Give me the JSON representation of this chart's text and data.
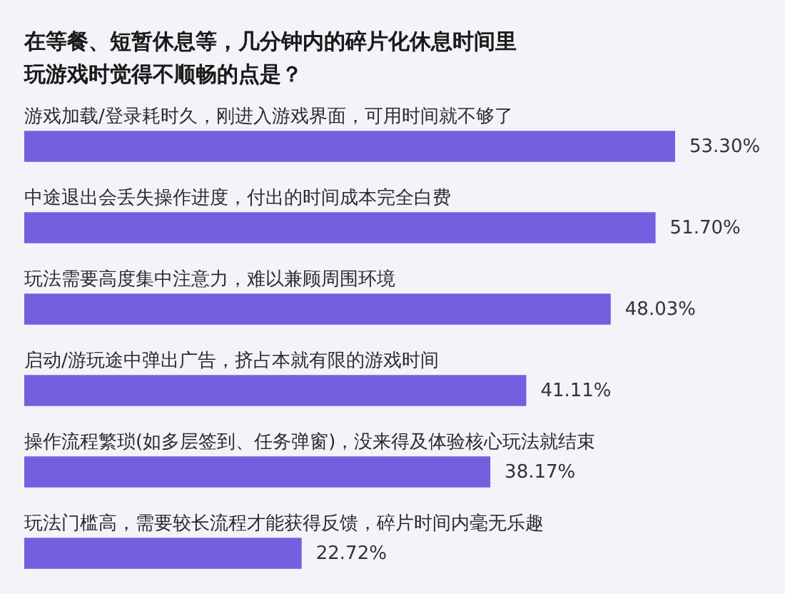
{
  "chart_data": {
    "type": "bar",
    "orientation": "horizontal",
    "title": "在等餐、短暂休息等，几分钟内的碎片化休息时间里玩游戏时觉得不顺畅的点是？",
    "categories": [
      "游戏加载/登录耗时久，刚进入游戏界面，可用时间就不够了",
      "中途退出会丢失操作进度，付出的时间成本完全白费",
      "玩法需要高度集中注意力，难以兼顾周围环境",
      "启动/游玩途中弹出广告，挤占本就有限的游戏时间",
      "操作流程繁琐(如多层签到、任务弹窗)，没来得及体验核心玩法就结束",
      "玩法门槛高，需要较长流程才能获得反馈，碎片时间内毫无乐趣"
    ],
    "values": [
      53.3,
      51.7,
      48.03,
      41.11,
      38.17,
      22.72
    ],
    "value_labels": [
      "53.30%",
      "51.70%",
      "48.03%",
      "41.11%",
      "38.17%",
      "22.72%"
    ],
    "color": "#7360e0"
  }
}
